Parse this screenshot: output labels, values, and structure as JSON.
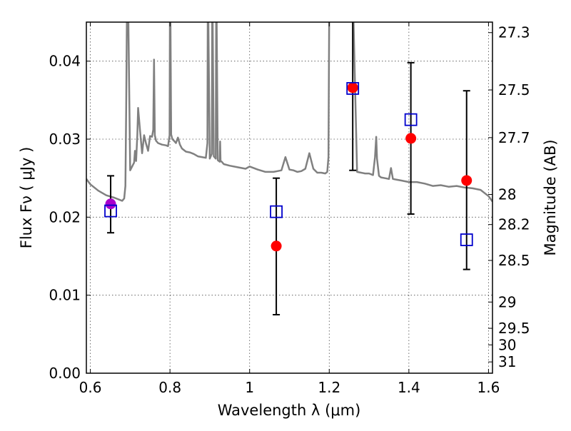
{
  "chart_data": {
    "type": "scatter",
    "xlabel": "Wavelength  λ (μm)",
    "ylabel": "Flux  Fν  ( μJy )",
    "ylabel_right": "Magnitude (AB)",
    "xlim": [
      0.59,
      1.61
    ],
    "ylim": [
      0.0,
      0.045
    ],
    "grid": true,
    "x_ticks": [
      0.6,
      0.8,
      1.0,
      1.2,
      1.4,
      1.6
    ],
    "x_tick_labels": [
      "0.6",
      "0.8",
      "1",
      "1.2",
      "1.4",
      "1.6"
    ],
    "y_ticks": [
      0.0,
      0.01,
      0.02,
      0.03,
      0.04
    ],
    "y_tick_labels": [
      "0.00",
      "0.01",
      "0.02",
      "0.03",
      "0.04"
    ],
    "right_ticks": [
      {
        "label": "27.3",
        "mag": 27.3
      },
      {
        "label": "27.5",
        "mag": 27.5
      },
      {
        "label": "27.7",
        "mag": 27.7
      },
      {
        "label": "28",
        "mag": 28.0
      },
      {
        "label": "28.2",
        "mag": 28.2
      },
      {
        "label": "28.5",
        "mag": 28.5
      },
      {
        "label": "29",
        "mag": 29.0
      },
      {
        "label": "29.5",
        "mag": 29.5
      },
      {
        "label": "30",
        "mag": 30.0
      },
      {
        "label": "31",
        "mag": 31.0
      }
    ],
    "colors": {
      "observed": "#ff0000",
      "observed_first": "#aa00cc",
      "model": "#0000cc",
      "spectrum": "#808080",
      "errorbar": "#000000"
    },
    "series": [
      {
        "kind": "spectrum",
        "x": [
          0.59,
          0.6,
          0.62,
          0.64,
          0.66,
          0.68,
          0.685,
          0.688,
          0.69,
          0.692,
          0.695,
          0.7,
          0.71,
          0.712,
          0.715,
          0.718,
          0.72,
          0.725,
          0.73,
          0.735,
          0.74,
          0.745,
          0.75,
          0.755,
          0.758,
          0.76,
          0.762,
          0.765,
          0.77,
          0.78,
          0.79,
          0.795,
          0.799,
          0.8,
          0.801,
          0.803,
          0.806,
          0.81,
          0.815,
          0.82,
          0.825,
          0.83,
          0.84,
          0.85,
          0.86,
          0.87,
          0.88,
          0.89,
          0.894,
          0.895,
          0.896,
          0.9,
          0.905,
          0.906,
          0.907,
          0.91,
          0.915,
          0.916,
          0.917,
          0.92,
          0.925,
          0.926,
          0.927,
          0.93,
          0.935,
          0.95,
          0.97,
          0.99,
          1.0,
          1.02,
          1.04,
          1.06,
          1.07,
          1.08,
          1.09,
          1.1,
          1.11,
          1.12,
          1.13,
          1.14,
          1.15,
          1.16,
          1.17,
          1.18,
          1.19,
          1.195,
          1.198,
          1.2,
          1.203,
          1.206,
          1.21,
          1.22,
          1.23,
          1.24,
          1.25,
          1.26,
          1.27,
          1.28,
          1.29,
          1.3,
          1.31,
          1.315,
          1.318,
          1.32,
          1.325,
          1.33,
          1.34,
          1.35,
          1.355,
          1.36,
          1.37,
          1.38,
          1.4,
          1.42,
          1.44,
          1.46,
          1.48,
          1.5,
          1.52,
          1.54,
          1.56,
          1.58,
          1.6,
          1.61
        ],
        "y": [
          0.0249,
          0.0242,
          0.0234,
          0.0228,
          0.0225,
          0.0221,
          0.0224,
          0.024,
          0.034,
          0.047,
          0.047,
          0.026,
          0.027,
          0.0285,
          0.0272,
          0.0305,
          0.034,
          0.031,
          0.0282,
          0.0305,
          0.0294,
          0.0285,
          0.0304,
          0.0303,
          0.0312,
          0.0402,
          0.0305,
          0.0298,
          0.0295,
          0.0293,
          0.0292,
          0.0291,
          0.0305,
          0.047,
          0.047,
          0.0306,
          0.03,
          0.0298,
          0.0295,
          0.0302,
          0.0293,
          0.0288,
          0.0284,
          0.0283,
          0.0281,
          0.0278,
          0.0277,
          0.0276,
          0.0295,
          0.047,
          0.047,
          0.0275,
          0.0281,
          0.047,
          0.047,
          0.0278,
          0.0275,
          0.047,
          0.047,
          0.0273,
          0.0271,
          0.0297,
          0.0272,
          0.0271,
          0.0268,
          0.0266,
          0.0264,
          0.0262,
          0.0265,
          0.0261,
          0.0258,
          0.0258,
          0.0259,
          0.026,
          0.0277,
          0.0261,
          0.026,
          0.0258,
          0.0259,
          0.0262,
          0.0282,
          0.0262,
          0.0257,
          0.0257,
          0.0256,
          0.0258,
          0.0277,
          0.047,
          0.047,
          0.047,
          0.047,
          0.047,
          0.047,
          0.047,
          0.047,
          0.047,
          0.0258,
          0.0257,
          0.0256,
          0.0256,
          0.0254,
          0.0277,
          0.0303,
          0.0275,
          0.0253,
          0.0251,
          0.025,
          0.0249,
          0.0263,
          0.0249,
          0.0248,
          0.0247,
          0.0245,
          0.0245,
          0.0243,
          0.024,
          0.0241,
          0.0239,
          0.024,
          0.0238,
          0.0237,
          0.0235,
          0.0227,
          0.022
        ]
      },
      {
        "kind": "observed",
        "x": [
          0.651,
          1.067,
          1.259,
          1.405,
          1.545
        ],
        "y": [
          0.0217,
          0.0163,
          0.0366,
          0.0301,
          0.0247
        ],
        "yerr_low": [
          0.018,
          0.0075,
          0.026,
          0.0204,
          0.0133
        ],
        "yerr_high": [
          0.0253,
          0.025,
          0.0455,
          0.0398,
          0.0362
        ]
      },
      {
        "kind": "model",
        "x": [
          0.651,
          1.067,
          1.259,
          1.405,
          1.545
        ],
        "y": [
          0.0208,
          0.0207,
          0.0365,
          0.0325,
          0.0171
        ]
      }
    ]
  }
}
